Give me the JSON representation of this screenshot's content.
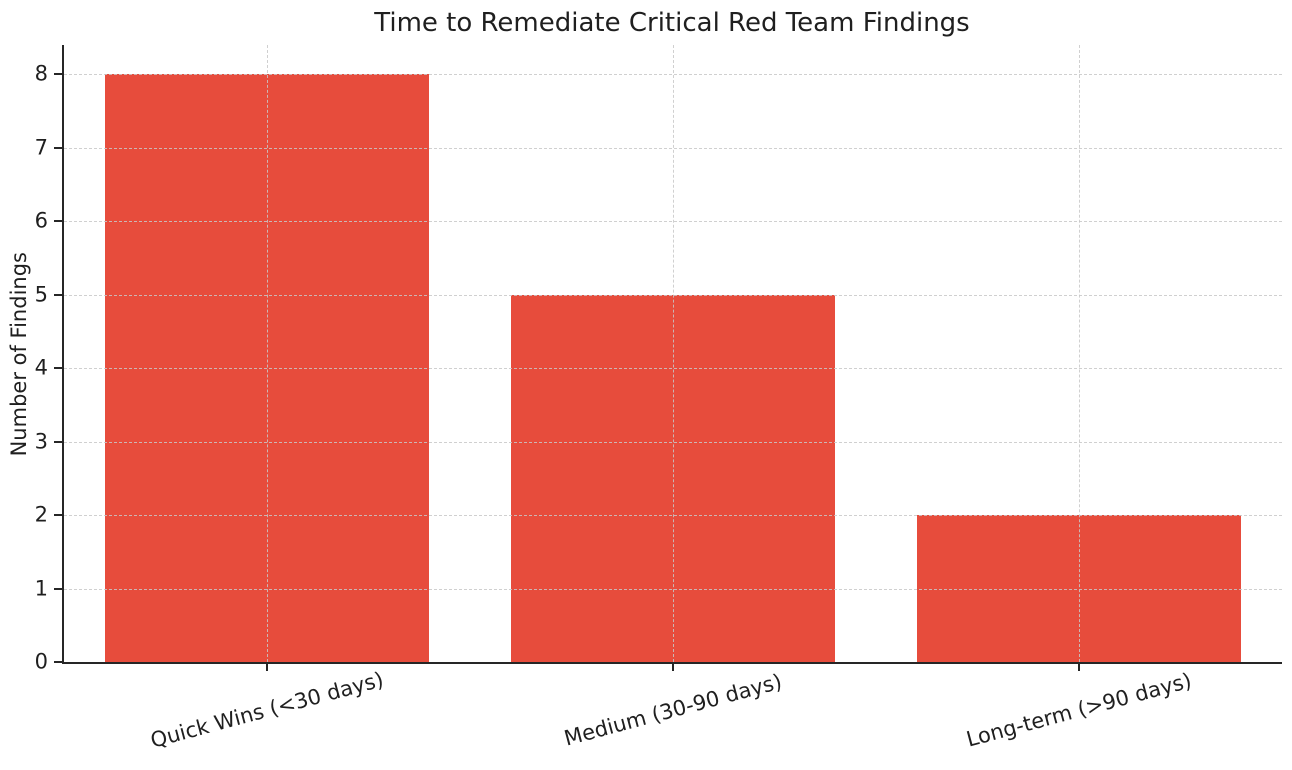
{
  "chart_data": {
    "type": "bar",
    "title": "Time to Remediate Critical Red Team Findings",
    "xlabel": "",
    "ylabel": "Number of Findings",
    "categories": [
      "Quick Wins (<30 days)",
      "Medium (30-90 days)",
      "Long-term (>90 days)"
    ],
    "values": [
      8,
      5,
      2
    ],
    "yticks": [
      0,
      1,
      2,
      3,
      4,
      5,
      6,
      7,
      8
    ],
    "ylim": [
      0,
      8.4
    ],
    "bar_width_fraction": 0.8,
    "x_tick_rotation_deg": 15,
    "grid": "dashed, horizontal and vertical, drawn above bars",
    "legend_position": "none",
    "colors": {
      "bar": "#E74C3C",
      "grid": "#c8c8c8",
      "text": "#1f1f1f",
      "spine": "#262626",
      "background": "#ffffff"
    }
  }
}
